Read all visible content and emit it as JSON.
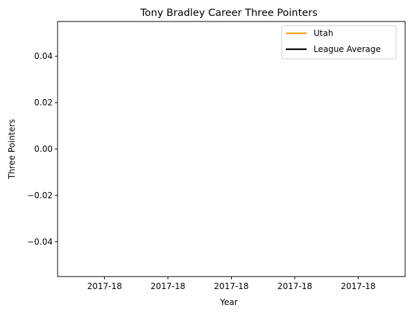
{
  "chart_data": {
    "type": "line",
    "title": "Tony Bradley  Career Three Pointers",
    "xlabel": "Year",
    "ylabel": "Three Pointers",
    "x_tick_labels": [
      "2017-18",
      "2017-18",
      "2017-18",
      "2017-18",
      "2017-18"
    ],
    "y_ticks": [
      -0.04,
      -0.02,
      0.0,
      0.02,
      0.04
    ],
    "y_tick_labels": [
      "−0.04",
      "−0.02",
      "0.00",
      "0.02",
      "0.04"
    ],
    "ylim": [
      -0.055,
      0.055
    ],
    "grid": false,
    "legend_position": "top-right",
    "series": [
      {
        "name": "Utah",
        "color": "#ff9f1c",
        "values": []
      },
      {
        "name": "League Average",
        "color": "#000000",
        "values": []
      }
    ]
  }
}
